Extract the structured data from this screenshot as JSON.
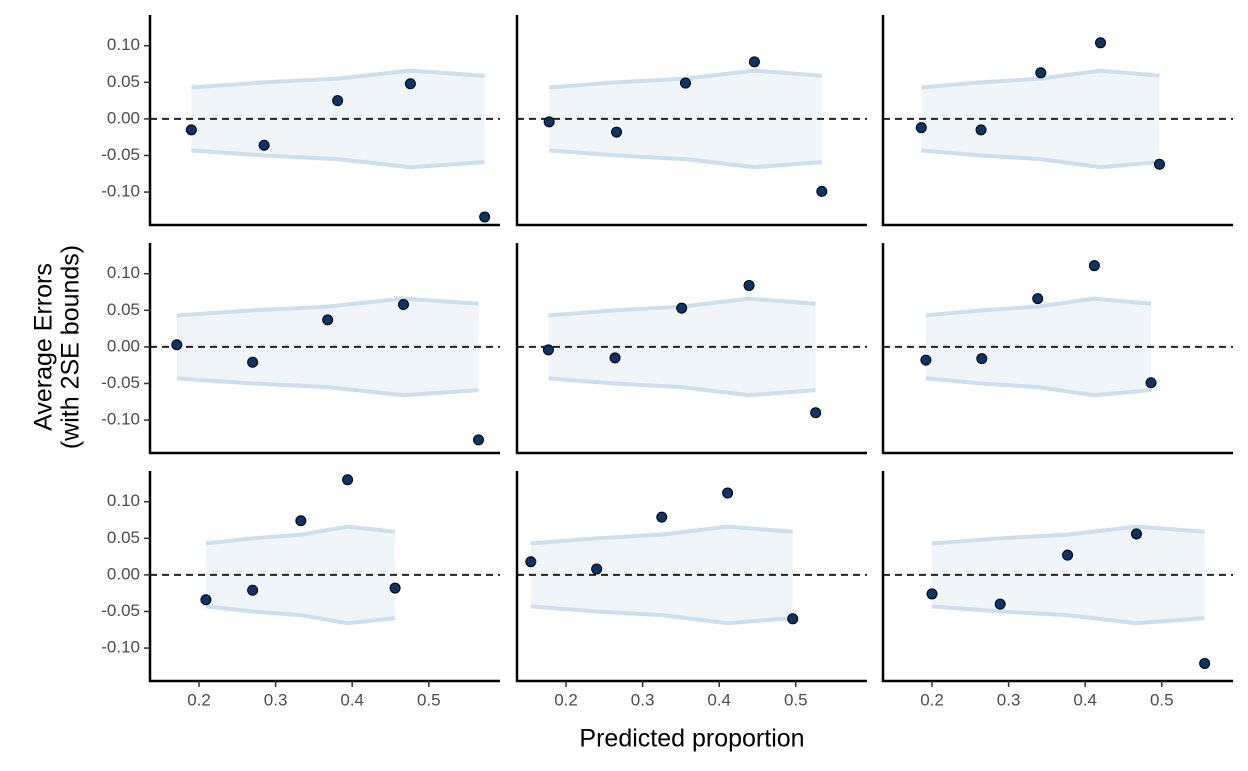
{
  "chart_data": {
    "type": "scatter",
    "xlabel": "Predicted proportion",
    "ylabel": [
      "Average Errors",
      "(with 2SE bounds)"
    ],
    "xlim": [
      0.136,
      0.593
    ],
    "ylim": [
      -0.145,
      0.142
    ],
    "xticks": [
      0.2,
      0.3,
      0.4,
      0.5
    ],
    "yticks": [
      {
        "value": -0.1,
        "label": "-0.10"
      },
      {
        "value": -0.05,
        "label": "-0.05"
      },
      {
        "value": 0,
        "label": "0.00"
      },
      {
        "value": 0.05,
        "label": "0.05"
      },
      {
        "value": 0.1,
        "label": "0.10"
      }
    ],
    "hline": 0,
    "point_color": "#0b3468",
    "band_fill": "#f0f5f9",
    "band_line": "#cddfec",
    "panels": [
      {
        "x": [
          0.19,
          0.285,
          0.381,
          0.476,
          0.573
        ],
        "values": [
          -0.015,
          -0.036,
          0.025,
          0.048,
          -0.134
        ],
        "upper": [
          0.043,
          0.05,
          0.055,
          0.066,
          0.059
        ],
        "lower": [
          -0.043,
          -0.05,
          -0.055,
          -0.066,
          -0.059
        ]
      },
      {
        "x": [
          0.178,
          0.266,
          0.356,
          0.446,
          0.534
        ],
        "values": [
          -0.004,
          -0.018,
          0.049,
          0.078,
          -0.099
        ],
        "upper": [
          0.043,
          0.05,
          0.055,
          0.066,
          0.059
        ],
        "lower": [
          -0.043,
          -0.05,
          -0.055,
          -0.066,
          -0.059
        ]
      },
      {
        "x": [
          0.186,
          0.264,
          0.342,
          0.42,
          0.497
        ],
        "values": [
          -0.012,
          -0.015,
          0.063,
          0.104,
          -0.062
        ],
        "upper": [
          0.043,
          0.05,
          0.055,
          0.066,
          0.059
        ],
        "lower": [
          -0.043,
          -0.05,
          -0.055,
          -0.066,
          -0.059
        ]
      },
      {
        "x": [
          0.171,
          0.27,
          0.368,
          0.467,
          0.565
        ],
        "values": [
          0.003,
          -0.021,
          0.037,
          0.058,
          -0.127
        ],
        "upper": [
          0.043,
          0.05,
          0.055,
          0.066,
          0.059
        ],
        "lower": [
          -0.043,
          -0.05,
          -0.055,
          -0.066,
          -0.059
        ]
      },
      {
        "x": [
          0.177,
          0.264,
          0.351,
          0.439,
          0.526
        ],
        "values": [
          -0.004,
          -0.015,
          0.053,
          0.084,
          -0.09
        ],
        "upper": [
          0.043,
          0.05,
          0.055,
          0.066,
          0.059
        ],
        "lower": [
          -0.043,
          -0.05,
          -0.055,
          -0.066,
          -0.059
        ]
      },
      {
        "x": [
          0.192,
          0.265,
          0.338,
          0.412,
          0.486
        ],
        "values": [
          -0.018,
          -0.016,
          0.066,
          0.111,
          -0.049
        ],
        "upper": [
          0.043,
          0.05,
          0.055,
          0.066,
          0.059
        ],
        "lower": [
          -0.043,
          -0.05,
          -0.055,
          -0.066,
          -0.059
        ]
      },
      {
        "x": [
          0.209,
          0.27,
          0.333,
          0.394,
          0.456
        ],
        "values": [
          -0.034,
          -0.021,
          0.074,
          0.13,
          -0.018
        ],
        "upper": [
          0.043,
          0.05,
          0.055,
          0.066,
          0.059
        ],
        "lower": [
          -0.043,
          -0.05,
          -0.055,
          -0.066,
          -0.059
        ]
      },
      {
        "x": [
          0.154,
          0.24,
          0.325,
          0.411,
          0.496
        ],
        "values": [
          0.018,
          0.008,
          0.079,
          0.112,
          -0.06
        ],
        "upper": [
          0.043,
          0.05,
          0.055,
          0.066,
          0.059
        ],
        "lower": [
          -0.043,
          -0.05,
          -0.055,
          -0.066,
          -0.059
        ]
      },
      {
        "x": [
          0.2,
          0.289,
          0.377,
          0.467,
          0.556
        ],
        "values": [
          -0.026,
          -0.04,
          0.027,
          0.056,
          -0.121
        ],
        "upper": [
          0.043,
          0.05,
          0.055,
          0.066,
          0.059
        ],
        "lower": [
          -0.043,
          -0.05,
          -0.055,
          -0.066,
          -0.059
        ]
      }
    ]
  }
}
